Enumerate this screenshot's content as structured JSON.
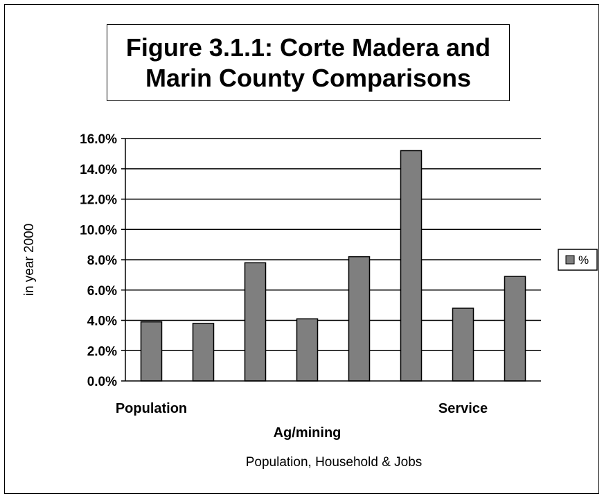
{
  "chart_data": {
    "type": "bar",
    "title_lines": [
      "Figure 3.1.1: Corte Madera and",
      "Marin County Comparisons"
    ],
    "categories": [
      "Population",
      "",
      "",
      "Ag/mining",
      "",
      "",
      "Service",
      ""
    ],
    "series": [
      {
        "name": "%",
        "values": [
          3.9,
          3.8,
          7.8,
          4.1,
          8.2,
          15.2,
          4.8,
          6.9
        ]
      }
    ],
    "value_unit": "%",
    "xlabel": "Population, Household  & Jobs",
    "ylabel": "in year 2000",
    "ylim": [
      0,
      16
    ],
    "y_ticks": [
      0,
      2,
      4,
      6,
      8,
      10,
      12,
      14,
      16
    ],
    "y_tick_labels": [
      "0.0%",
      "2.0%",
      "4.0%",
      "6.0%",
      "8.0%",
      "10.0%",
      "12.0%",
      "14.0%",
      "16.0%"
    ],
    "grid": true,
    "legend_position": "right",
    "colors": {
      "bar": "#7f7f7f",
      "bar_stroke": "#000000",
      "grid": "#000000",
      "background": "#ffffff"
    }
  }
}
